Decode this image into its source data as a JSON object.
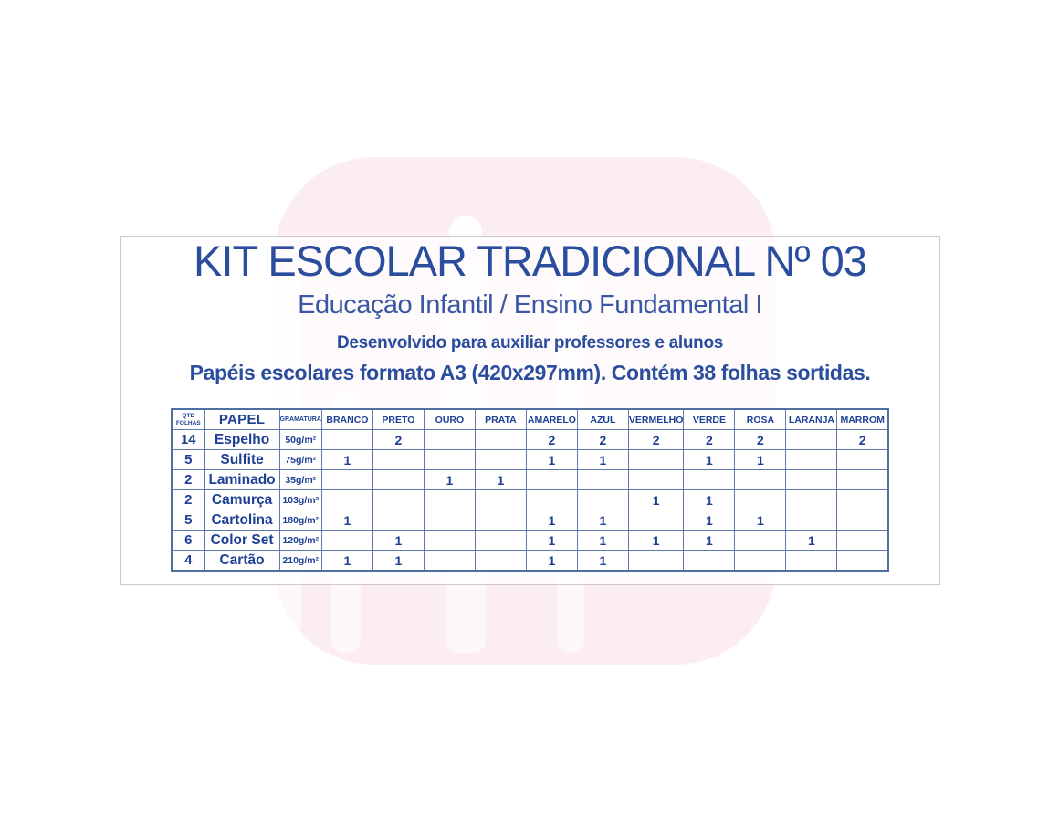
{
  "header": {
    "title": "KIT ESCOLAR TRADICIONAL Nº 03",
    "subtitle": "Educação Infantil / Ensino Fundamental I",
    "tagline": "Desenvolvido para auxiliar professores e alunos",
    "description": "Papéis escolares formato A3 (420x297mm). Contém 38 folhas sortidas."
  },
  "table": {
    "col_qtd_line1": "QTD",
    "col_qtd_line2": "FOLHAS",
    "col_papel": "PAPEL",
    "col_gramatura": "GRAMATURA",
    "color_columns": [
      "BRANCO",
      "PRETO",
      "OURO",
      "PRATA",
      "AMARELO",
      "AZUL",
      "VERMELHO",
      "VERDE",
      "ROSA",
      "LARANJA",
      "MARROM"
    ],
    "rows": [
      {
        "qtd": "14",
        "papel": "Espelho",
        "gramatura": "50g/m²",
        "valores": [
          "",
          "2",
          "",
          "",
          "2",
          "2",
          "2",
          "2",
          "2",
          "",
          "2"
        ]
      },
      {
        "qtd": "5",
        "papel": "Sulfite",
        "gramatura": "75g/m²",
        "valores": [
          "1",
          "",
          "",
          "",
          "1",
          "1",
          "",
          "1",
          "1",
          "",
          ""
        ]
      },
      {
        "qtd": "2",
        "papel": "Laminado",
        "gramatura": "35g/m²",
        "valores": [
          "",
          "",
          "1",
          "1",
          "",
          "",
          "",
          "",
          "",
          "",
          ""
        ]
      },
      {
        "qtd": "2",
        "papel": "Camurça",
        "gramatura": "103g/m²",
        "valores": [
          "",
          "",
          "",
          "",
          "",
          "",
          "1",
          "1",
          "",
          "",
          ""
        ]
      },
      {
        "qtd": "5",
        "papel": "Cartolina",
        "gramatura": "180g/m²",
        "valores": [
          "1",
          "",
          "",
          "",
          "1",
          "1",
          "",
          "1",
          "1",
          "",
          ""
        ]
      },
      {
        "qtd": "6",
        "papel": "Color Set",
        "gramatura": "120g/m²",
        "valores": [
          "",
          "1",
          "",
          "",
          "1",
          "1",
          "1",
          "1",
          "",
          "1",
          ""
        ]
      },
      {
        "qtd": "4",
        "papel": "Cartão",
        "gramatura": "210g/m²",
        "valores": [
          "1",
          "1",
          "",
          "",
          "1",
          "1",
          "",
          "",
          "",
          "",
          ""
        ]
      }
    ]
  },
  "colors": {
    "title_blue": "#2a4d9e",
    "subtitle_blue": "#3a57a5",
    "table_text_navy": "#1d3f94",
    "table_border_blue": "#5b7cad",
    "table_outer_border": "#4d6fa2",
    "card_border_gray": "#c9c9c9",
    "watermark_pink": "#fceef0",
    "background": "#ffffff"
  }
}
